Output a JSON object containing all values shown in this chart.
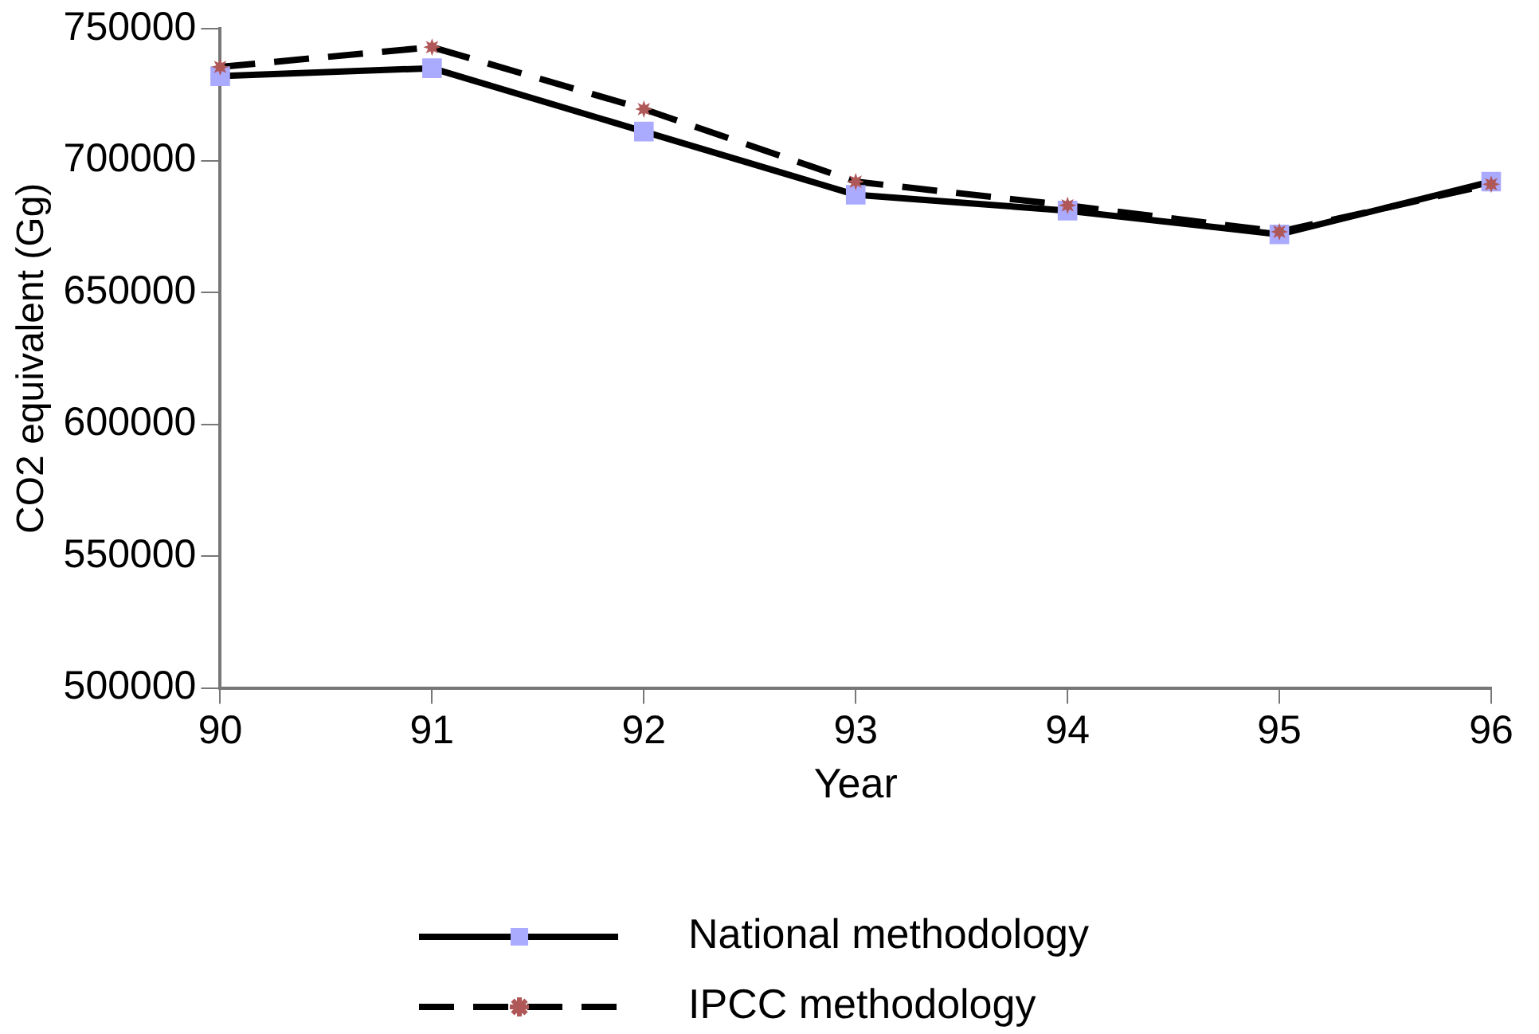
{
  "chart_data": {
    "type": "line",
    "xlabel": "Year",
    "ylabel": "CO2 equivalent (Gg)",
    "categories": [
      "90",
      "91",
      "92",
      "93",
      "94",
      "95",
      "96"
    ],
    "series": [
      {
        "name": "National methodology",
        "color": "#aaaaff",
        "marker": "square",
        "line_style": "solid",
        "values": [
          732000,
          735000,
          711000,
          687000,
          681000,
          672000,
          692000
        ]
      },
      {
        "name": "IPCC methodology",
        "color": "#b05858",
        "marker": "star",
        "line_style": "dashed",
        "values": [
          735500,
          743000,
          719500,
          692000,
          683000,
          673000,
          691000
        ]
      }
    ],
    "ylim": [
      500000,
      750000
    ],
    "yticks": [
      500000,
      550000,
      600000,
      650000,
      700000,
      750000
    ],
    "grid": false,
    "legend": "bottom"
  }
}
